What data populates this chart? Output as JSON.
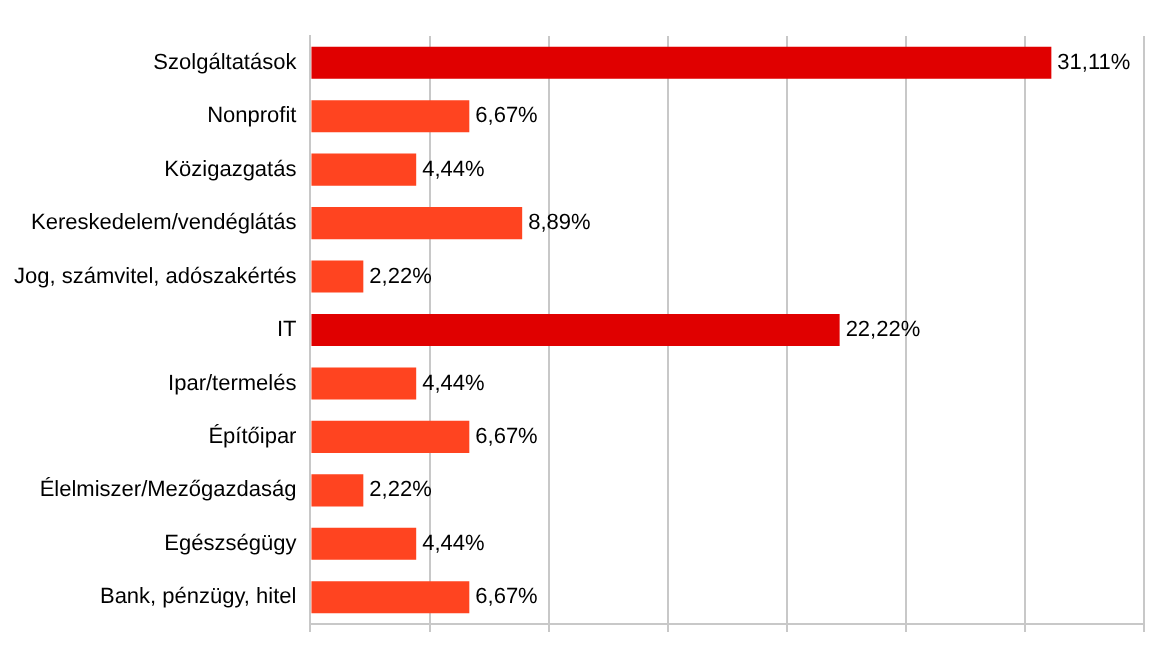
{
  "chart_data": {
    "type": "bar",
    "orientation": "horizontal",
    "categories": [
      "Szolgáltatások",
      "Nonprofit",
      "Közigazgatás",
      "Kereskedelem/vendéglátás",
      "Jog, számvitel, adószakértés",
      "IT",
      "Ipar/termelés",
      "Építőipar",
      "Élelmiszer/Mezőgazdaság",
      "Egészségügy",
      "Bank, pénzügy, hitel"
    ],
    "values": [
      31.11,
      6.67,
      4.44,
      8.89,
      2.22,
      22.22,
      4.44,
      6.67,
      2.22,
      4.44,
      6.67
    ],
    "value_labels": [
      "31,11%",
      "6,67%",
      "4,44%",
      "8,89%",
      "2,22%",
      "22,22%",
      "4,44%",
      "6,67%",
      "2,22%",
      "4,44%",
      "6,67%"
    ],
    "colors": [
      "#e00000",
      "#ff4420",
      "#ff4420",
      "#ff4420",
      "#ff4420",
      "#e00000",
      "#ff4420",
      "#ff4420",
      "#ff4420",
      "#ff4420",
      "#ff4420"
    ],
    "xlim": [
      0,
      35
    ],
    "xticks": [
      {
        "value": 0,
        "label": null
      },
      {
        "value": 5,
        "label": null
      },
      {
        "value": 10,
        "label": null
      },
      {
        "value": 15,
        "label": null
      },
      {
        "value": 20,
        "label": null
      },
      {
        "value": 25,
        "label": null
      },
      {
        "value": 30,
        "label": null
      },
      {
        "value": 35,
        "label": null
      }
    ],
    "grid": "x",
    "tick_labels": "y",
    "legend": false
  }
}
